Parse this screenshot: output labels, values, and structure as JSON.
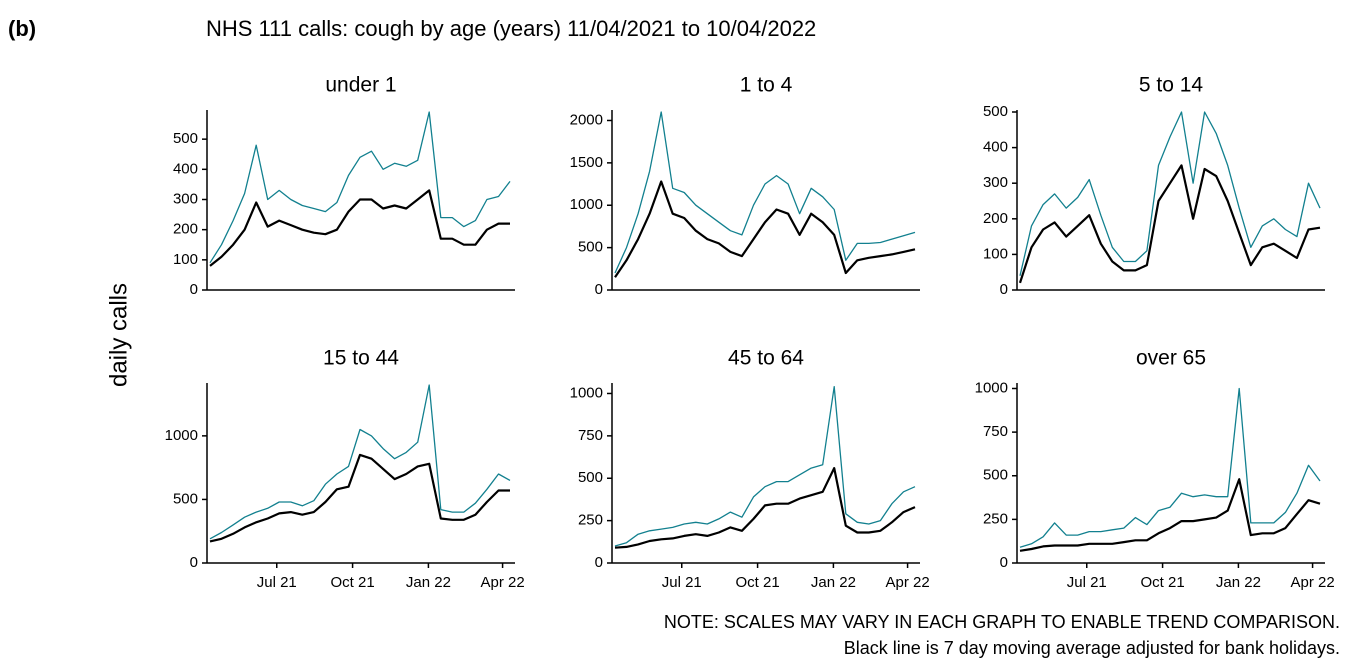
{
  "label": "(b)",
  "title": "NHS 111 calls: cough by age (years) 11/04/2021 to 10/04/2022",
  "ylabel": "daily calls",
  "notes": [
    "NOTE: SCALES MAY VARY IN EACH GRAPH TO ENABLE TREND COMPARISON.",
    "Black line is 7 day moving average adjusted for bank holidays."
  ],
  "chart_data": [
    {
      "type": "line",
      "title": "under 1",
      "x": [
        "11/04/2021",
        "25/04/2021",
        "09/05/2021",
        "23/05/2021",
        "06/06/2021",
        "20/06/2021",
        "04/07/2021",
        "18/07/2021",
        "01/08/2021",
        "15/08/2021",
        "29/08/2021",
        "12/09/2021",
        "26/09/2021",
        "10/10/2021",
        "24/10/2021",
        "07/11/2021",
        "21/11/2021",
        "05/12/2021",
        "19/12/2021",
        "02/01/2022",
        "16/01/2022",
        "30/01/2022",
        "13/02/2022",
        "27/02/2022",
        "13/03/2022",
        "27/03/2022",
        "10/04/2022"
      ],
      "xlim": [
        "11/04/2021",
        "10/04/2022"
      ],
      "ylim": [
        0,
        590
      ],
      "yticks": [
        0,
        100,
        200,
        300,
        400,
        500
      ],
      "series": [
        {
          "color": "#12808f",
          "values": [
            90,
            150,
            230,
            320,
            480,
            300,
            330,
            300,
            280,
            270,
            260,
            290,
            380,
            440,
            460,
            400,
            420,
            410,
            430,
            590,
            240,
            240,
            210,
            230,
            300,
            310,
            360
          ]
        },
        {
          "color": "#000000",
          "values": [
            80,
            110,
            150,
            200,
            290,
            210,
            230,
            215,
            200,
            190,
            185,
            200,
            260,
            300,
            300,
            270,
            280,
            270,
            300,
            330,
            170,
            170,
            150,
            150,
            200,
            220,
            220
          ]
        }
      ]
    },
    {
      "type": "line",
      "title": "1 to 4",
      "x": [
        "11/04/2021",
        "25/04/2021",
        "09/05/2021",
        "23/05/2021",
        "06/06/2021",
        "20/06/2021",
        "04/07/2021",
        "18/07/2021",
        "01/08/2021",
        "15/08/2021",
        "29/08/2021",
        "12/09/2021",
        "26/09/2021",
        "10/10/2021",
        "24/10/2021",
        "07/11/2021",
        "21/11/2021",
        "05/12/2021",
        "19/12/2021",
        "02/01/2022",
        "16/01/2022",
        "30/01/2022",
        "13/02/2022",
        "27/02/2022",
        "13/03/2022",
        "27/03/2022",
        "10/04/2022"
      ],
      "xlim": [
        "11/04/2021",
        "10/04/2022"
      ],
      "ylim": [
        0,
        2100
      ],
      "yticks": [
        0,
        500,
        1000,
        1500,
        2000
      ],
      "series": [
        {
          "color": "#12808f",
          "values": [
            200,
            500,
            900,
            1400,
            2100,
            1200,
            1150,
            1000,
            900,
            800,
            700,
            650,
            1000,
            1250,
            1350,
            1250,
            900,
            1200,
            1100,
            950,
            350,
            550,
            550,
            560,
            600,
            640,
            680
          ]
        },
        {
          "color": "#000000",
          "values": [
            150,
            350,
            600,
            900,
            1280,
            900,
            850,
            700,
            600,
            550,
            450,
            400,
            600,
            800,
            950,
            900,
            650,
            900,
            800,
            650,
            200,
            350,
            380,
            400,
            420,
            450,
            480
          ]
        }
      ]
    },
    {
      "type": "line",
      "title": "5 to 14",
      "x": [
        "11/04/2021",
        "25/04/2021",
        "09/05/2021",
        "23/05/2021",
        "06/06/2021",
        "20/06/2021",
        "04/07/2021",
        "18/07/2021",
        "01/08/2021",
        "15/08/2021",
        "29/08/2021",
        "12/09/2021",
        "26/09/2021",
        "10/10/2021",
        "24/10/2021",
        "07/11/2021",
        "21/11/2021",
        "05/12/2021",
        "19/12/2021",
        "02/01/2022",
        "16/01/2022",
        "30/01/2022",
        "13/02/2022",
        "27/02/2022",
        "13/03/2022",
        "27/03/2022",
        "10/04/2022"
      ],
      "xlim": [
        "11/04/2021",
        "10/04/2022"
      ],
      "ylim": [
        0,
        500
      ],
      "yticks": [
        0,
        100,
        200,
        300,
        400,
        500
      ],
      "series": [
        {
          "color": "#12808f",
          "values": [
            40,
            180,
            240,
            270,
            230,
            260,
            310,
            210,
            120,
            80,
            80,
            110,
            350,
            430,
            500,
            300,
            500,
            440,
            350,
            230,
            120,
            180,
            200,
            170,
            150,
            300,
            230
          ]
        },
        {
          "color": "#000000",
          "values": [
            20,
            120,
            170,
            190,
            150,
            180,
            210,
            130,
            80,
            55,
            55,
            70,
            250,
            300,
            350,
            200,
            340,
            320,
            250,
            160,
            70,
            120,
            130,
            110,
            90,
            170,
            175
          ]
        }
      ]
    },
    {
      "type": "line",
      "title": "15 to 44",
      "x": [
        "11/04/2021",
        "25/04/2021",
        "09/05/2021",
        "23/05/2021",
        "06/06/2021",
        "20/06/2021",
        "04/07/2021",
        "18/07/2021",
        "01/08/2021",
        "15/08/2021",
        "29/08/2021",
        "12/09/2021",
        "26/09/2021",
        "10/10/2021",
        "24/10/2021",
        "07/11/2021",
        "21/11/2021",
        "05/12/2021",
        "19/12/2021",
        "02/01/2022",
        "16/01/2022",
        "30/01/2022",
        "13/02/2022",
        "27/02/2022",
        "13/03/2022",
        "27/03/2022",
        "10/04/2022"
      ],
      "xlim": [
        "11/04/2021",
        "10/04/2022"
      ],
      "xticks": [
        {
          "value": "01/07/2021",
          "label": "Jul 21"
        },
        {
          "value": "01/10/2021",
          "label": "Oct 21"
        },
        {
          "value": "01/01/2022",
          "label": "Jan 22"
        },
        {
          "value": "01/04/2022",
          "label": "Apr 22"
        }
      ],
      "ylim": [
        0,
        1400
      ],
      "yticks": [
        0,
        500,
        1000
      ],
      "series": [
        {
          "color": "#12808f",
          "values": [
            190,
            240,
            300,
            360,
            400,
            430,
            480,
            480,
            450,
            490,
            620,
            700,
            760,
            1050,
            1000,
            900,
            820,
            870,
            950,
            1400,
            420,
            400,
            400,
            470,
            580,
            700,
            650
          ]
        },
        {
          "color": "#000000",
          "values": [
            170,
            190,
            230,
            280,
            320,
            350,
            390,
            400,
            380,
            400,
            480,
            580,
            600,
            850,
            820,
            740,
            660,
            700,
            760,
            780,
            350,
            340,
            340,
            380,
            480,
            570,
            570
          ]
        }
      ]
    },
    {
      "type": "line",
      "title": "45 to 64",
      "x": [
        "11/04/2021",
        "25/04/2021",
        "09/05/2021",
        "23/05/2021",
        "06/06/2021",
        "20/06/2021",
        "04/07/2021",
        "18/07/2021",
        "01/08/2021",
        "15/08/2021",
        "29/08/2021",
        "12/09/2021",
        "26/09/2021",
        "10/10/2021",
        "24/10/2021",
        "07/11/2021",
        "21/11/2021",
        "05/12/2021",
        "19/12/2021",
        "02/01/2022",
        "16/01/2022",
        "30/01/2022",
        "13/02/2022",
        "27/02/2022",
        "13/03/2022",
        "27/03/2022",
        "10/04/2022"
      ],
      "xlim": [
        "11/04/2021",
        "10/04/2022"
      ],
      "xticks": [
        {
          "value": "01/07/2021",
          "label": "Jul 21"
        },
        {
          "value": "01/10/2021",
          "label": "Oct 21"
        },
        {
          "value": "01/01/2022",
          "label": "Jan 22"
        },
        {
          "value": "01/04/2022",
          "label": "Apr 22"
        }
      ],
      "ylim": [
        0,
        1050
      ],
      "yticks": [
        0,
        250,
        500,
        750,
        1000
      ],
      "series": [
        {
          "color": "#12808f",
          "values": [
            100,
            120,
            170,
            190,
            200,
            210,
            230,
            240,
            230,
            260,
            300,
            270,
            390,
            450,
            480,
            480,
            520,
            560,
            580,
            1040,
            290,
            240,
            230,
            250,
            350,
            420,
            450
          ]
        },
        {
          "color": "#000000",
          "values": [
            90,
            95,
            110,
            130,
            140,
            145,
            160,
            170,
            160,
            180,
            210,
            190,
            260,
            340,
            350,
            350,
            380,
            400,
            420,
            560,
            220,
            180,
            180,
            190,
            240,
            300,
            330
          ]
        }
      ]
    },
    {
      "type": "line",
      "title": "over 65",
      "x": [
        "11/04/2021",
        "25/04/2021",
        "09/05/2021",
        "23/05/2021",
        "06/06/2021",
        "20/06/2021",
        "04/07/2021",
        "18/07/2021",
        "01/08/2021",
        "15/08/2021",
        "29/08/2021",
        "12/09/2021",
        "26/09/2021",
        "10/10/2021",
        "24/10/2021",
        "07/11/2021",
        "21/11/2021",
        "05/12/2021",
        "19/12/2021",
        "02/01/2022",
        "16/01/2022",
        "30/01/2022",
        "13/02/2022",
        "27/02/2022",
        "13/03/2022",
        "27/03/2022",
        "10/04/2022"
      ],
      "xlim": [
        "11/04/2021",
        "10/04/2022"
      ],
      "xticks": [
        {
          "value": "01/07/2021",
          "label": "Jul 21"
        },
        {
          "value": "01/10/2021",
          "label": "Oct 21"
        },
        {
          "value": "01/01/2022",
          "label": "Jan 22"
        },
        {
          "value": "01/04/2022",
          "label": "Apr 22"
        }
      ],
      "ylim": [
        0,
        1020
      ],
      "yticks": [
        0,
        250,
        500,
        750,
        1000
      ],
      "series": [
        {
          "color": "#12808f",
          "values": [
            90,
            110,
            150,
            230,
            160,
            160,
            180,
            180,
            190,
            200,
            260,
            220,
            300,
            320,
            400,
            380,
            390,
            380,
            380,
            1000,
            230,
            230,
            230,
            290,
            400,
            560,
            470
          ]
        },
        {
          "color": "#000000",
          "values": [
            70,
            80,
            95,
            100,
            100,
            100,
            110,
            110,
            110,
            120,
            130,
            130,
            170,
            200,
            240,
            240,
            250,
            260,
            300,
            480,
            160,
            170,
            170,
            200,
            280,
            360,
            340
          ]
        }
      ]
    }
  ]
}
